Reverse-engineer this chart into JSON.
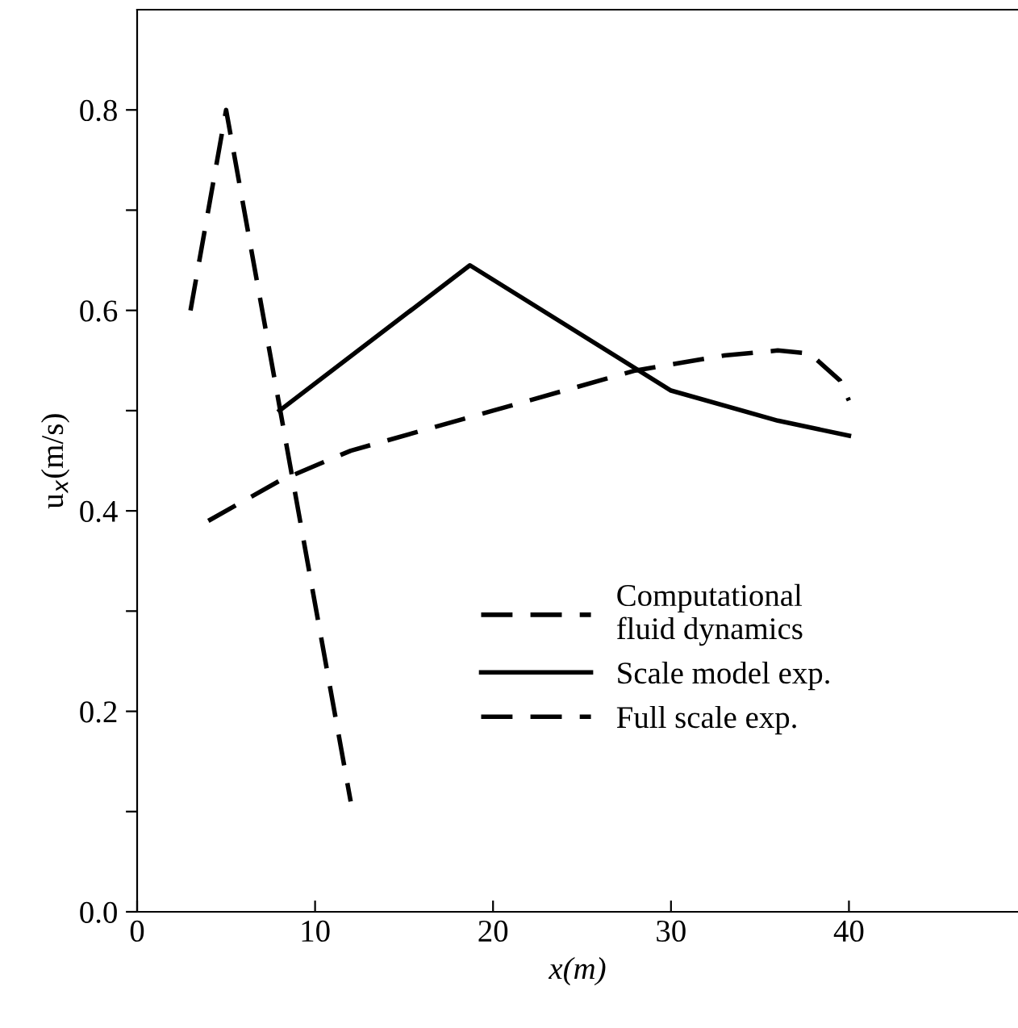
{
  "chart_data": {
    "type": "line",
    "xlabel": "x(m)",
    "ylabel": "u$_{x}$(m/s)",
    "xlim": [
      0,
      49.5
    ],
    "xticks": [
      0,
      10,
      20,
      30,
      40
    ],
    "ylim": [
      0,
      0.9
    ],
    "yticks": [
      {
        "value": 0,
        "label": "0.0"
      },
      {
        "value": 0.1,
        "label": null
      },
      0.2,
      {
        "value": 0.3,
        "label": null
      },
      0.4,
      {
        "value": 0.5,
        "label": null
      },
      0.6,
      {
        "value": 0.7,
        "label": null
      },
      0.8
    ],
    "grid": false,
    "legend": "right",
    "marker": "none",
    "series": [
      {
        "name": "Computational\nfluid dynamics",
        "color": "#000000",
        "line_style": "dashed",
        "x": [
          4,
          8,
          12,
          20,
          28,
          33,
          36,
          37.8,
          39.5,
          40
        ],
        "values": [
          0.39,
          0.43,
          0.46,
          0.5,
          0.54,
          0.555,
          0.56,
          0.557,
          0.53,
          0.51
        ]
      },
      {
        "name": "Scale model exp.",
        "color": "#000000",
        "line_style": "solid",
        "x": [
          8,
          18.7,
          30,
          36,
          40
        ],
        "values": [
          0.5,
          0.645,
          0.52,
          0.49,
          0.475
        ]
      },
      {
        "name": "Full scale exp.",
        "color": "#000000",
        "line_style": "dashed",
        "x": [
          3,
          5,
          12
        ],
        "values": [
          0.6,
          0.8,
          0.11
        ]
      }
    ]
  }
}
